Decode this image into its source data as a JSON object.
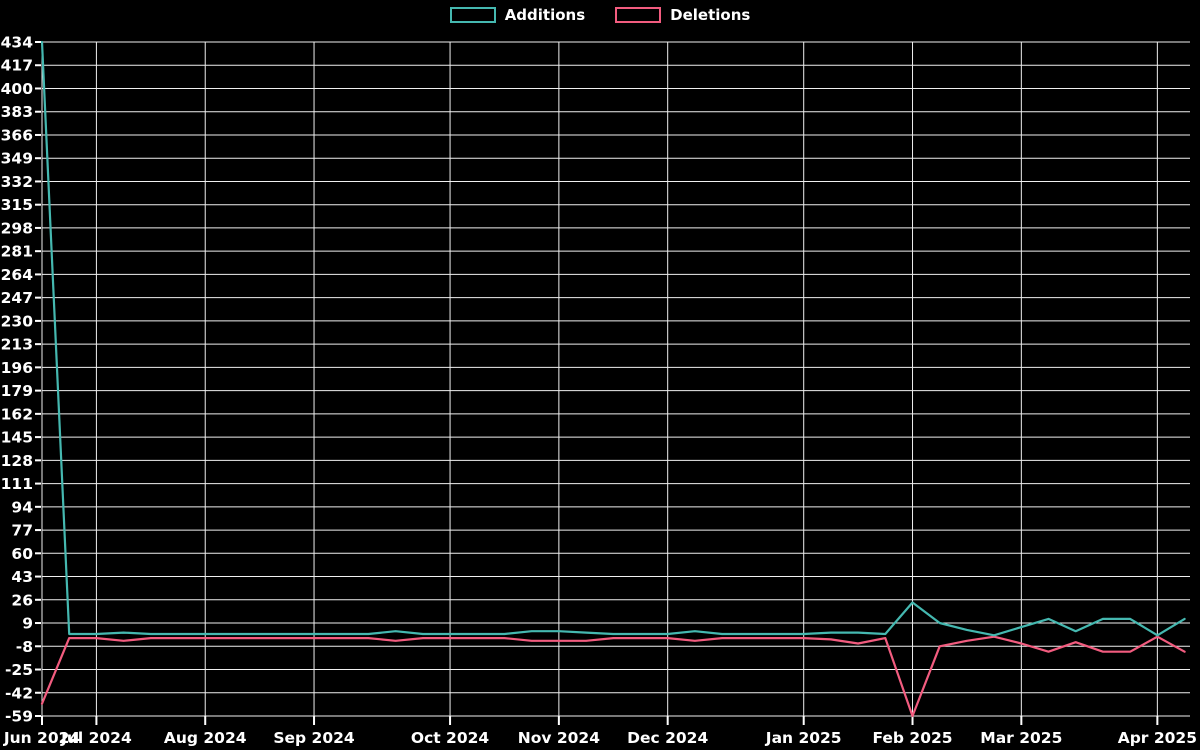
{
  "legend": {
    "items": [
      {
        "label": "Additions",
        "color": "#45b8b0"
      },
      {
        "label": "Deletions",
        "color": "#f25c7f"
      }
    ]
  },
  "chart_data": {
    "type": "line",
    "title": "",
    "xlabel": "",
    "ylabel": "",
    "x_unit": "week_index",
    "x": [
      0,
      1,
      2,
      3,
      4,
      5,
      6,
      7,
      8,
      9,
      10,
      11,
      12,
      13,
      14,
      15,
      16,
      17,
      18,
      19,
      20,
      21,
      22,
      23,
      24,
      25,
      26,
      27,
      28,
      29,
      30,
      31,
      32,
      33,
      34,
      35,
      36,
      37,
      38,
      39,
      40,
      41,
      42
    ],
    "series": [
      {
        "name": "Additions",
        "color": "#45b8b0",
        "values": [
          434,
          1,
          1,
          2,
          1,
          1,
          1,
          1,
          1,
          1,
          1,
          1,
          1,
          3,
          1,
          1,
          1,
          1,
          3,
          3,
          2,
          1,
          1,
          1,
          3,
          1,
          1,
          1,
          1,
          2,
          2,
          1,
          24,
          9,
          4,
          0,
          6,
          12,
          3,
          12,
          12,
          0,
          12
        ]
      },
      {
        "name": "Deletions",
        "color": "#f25c7f",
        "values": [
          -50,
          -2,
          -2,
          -4,
          -2,
          -2,
          -2,
          -2,
          -2,
          -2,
          -2,
          -2,
          -2,
          -4,
          -2,
          -2,
          -2,
          -2,
          -4,
          -4,
          -4,
          -2,
          -2,
          -2,
          -4,
          -2,
          -2,
          -2,
          -2,
          -3,
          -6,
          -2,
          -59,
          -8,
          -4,
          -1,
          -6,
          -12,
          -5,
          -12,
          -12,
          -1,
          -12
        ]
      }
    ],
    "x_ticks": [
      {
        "week": 0,
        "label": "Jun 2024"
      },
      {
        "week": 2,
        "label": "Jul 2024"
      },
      {
        "week": 6,
        "label": "Aug 2024"
      },
      {
        "week": 10,
        "label": "Sep 2024"
      },
      {
        "week": 15,
        "label": "Oct 2024"
      },
      {
        "week": 19,
        "label": "Nov 2024"
      },
      {
        "week": 23,
        "label": "Dec 2024"
      },
      {
        "week": 28,
        "label": "Jan 2025"
      },
      {
        "week": 32,
        "label": "Feb 2025"
      },
      {
        "week": 36,
        "label": "Mar 2025"
      },
      {
        "week": 41,
        "label": "Apr 2025"
      }
    ],
    "y_ticks": [
      434,
      417,
      400,
      383,
      366,
      349,
      332,
      315,
      298,
      281,
      264,
      247,
      230,
      213,
      196,
      179,
      162,
      145,
      128,
      111,
      94,
      77,
      60,
      43,
      26,
      9,
      -8,
      -25,
      -42,
      -59
    ],
    "ylim": [
      -59,
      434
    ],
    "xlim_weeks": [
      0,
      42.2
    ],
    "grid": true,
    "legend_position": "top-center",
    "colors": {
      "background": "#000000",
      "grid": "#f0f0f0",
      "text": "#ffffff"
    }
  }
}
